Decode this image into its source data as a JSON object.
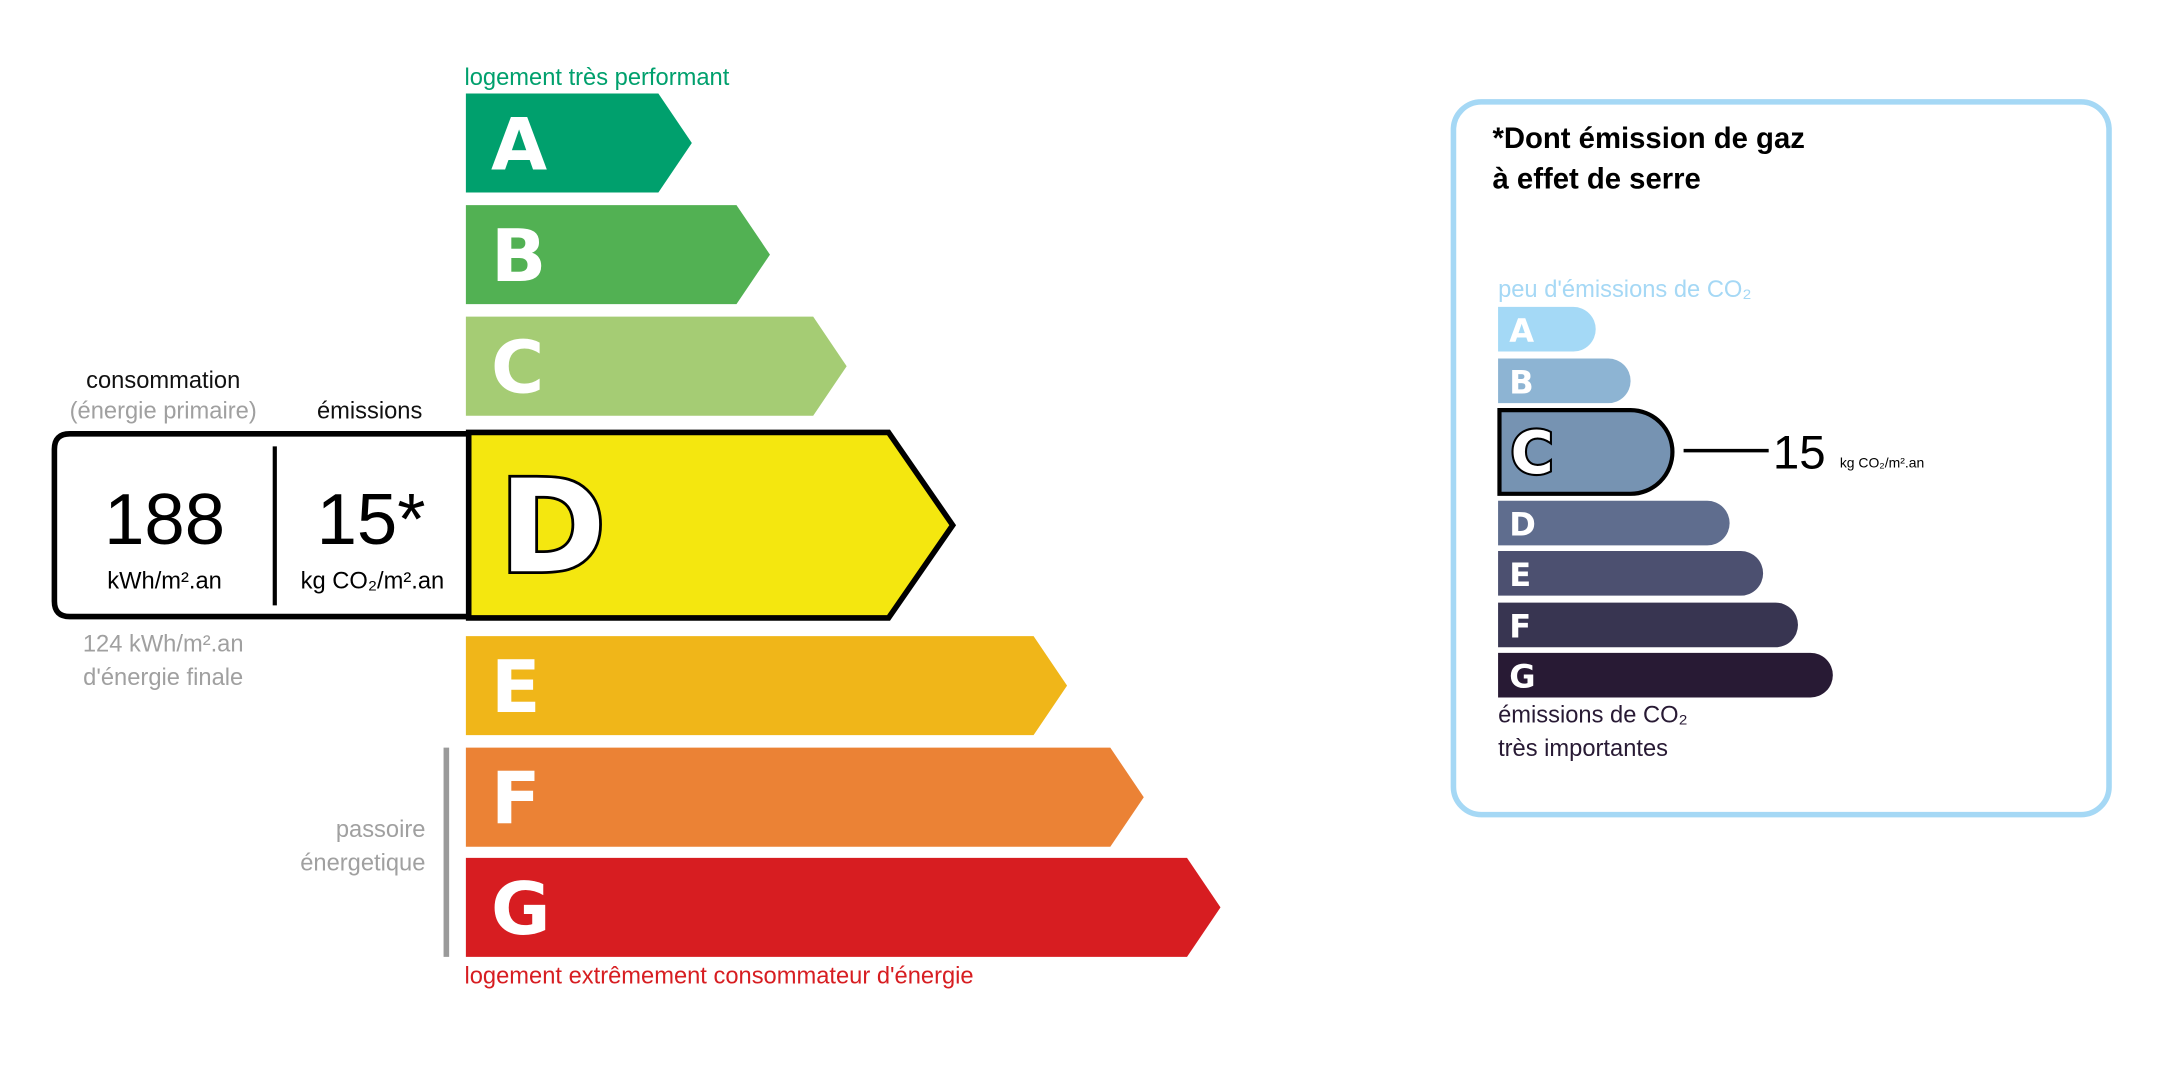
{
  "energy": {
    "top_label": "logement très performant",
    "bottom_label": "logement extrêmement consommateur d'énergie",
    "top_label_color": "#00a06d",
    "bottom_label_color": "#d71d21",
    "classes": [
      {
        "letter": "A",
        "color": "#00a06d"
      },
      {
        "letter": "B",
        "color": "#52b153"
      },
      {
        "letter": "C",
        "color": "#a5cc74"
      },
      {
        "letter": "D",
        "color": "#f4e70f"
      },
      {
        "letter": "E",
        "color": "#f0b619"
      },
      {
        "letter": "F",
        "color": "#eb8235"
      },
      {
        "letter": "G",
        "color": "#d71d21"
      }
    ],
    "current_class": "D",
    "consumption_header": "consommation",
    "consumption_subheader": "(énergie primaire)",
    "emissions_header": "émissions",
    "consumption_value": "188",
    "consumption_unit": "kWh/m².an",
    "emissions_value": "15*",
    "emissions_unit": "kg CO₂/m².an",
    "final_energy_value": "124 kWh/m².an",
    "final_energy_label": "d'énergie finale",
    "passoire_line1": "passoire",
    "passoire_line2": "énergetique"
  },
  "ghg": {
    "title_line1": "*Dont émission de gaz",
    "title_line2": "à effet de serre",
    "top_label": "peu d'émissions de CO₂",
    "bottom_label_line1": "émissions de CO₂",
    "bottom_label_line2": "très importantes",
    "border_color": "#a5d8f5",
    "classes": [
      {
        "letter": "A",
        "color": "#a4d9f6"
      },
      {
        "letter": "B",
        "color": "#8db4d3"
      },
      {
        "letter": "C",
        "color": "#7693b2"
      },
      {
        "letter": "D",
        "color": "#5f6d8e"
      },
      {
        "letter": "E",
        "color": "#4c5070"
      },
      {
        "letter": "F",
        "color": "#383551"
      },
      {
        "letter": "G",
        "color": "#281a34"
      }
    ],
    "current_class": "C",
    "value": "15",
    "unit": "kg CO₂/m².an"
  }
}
